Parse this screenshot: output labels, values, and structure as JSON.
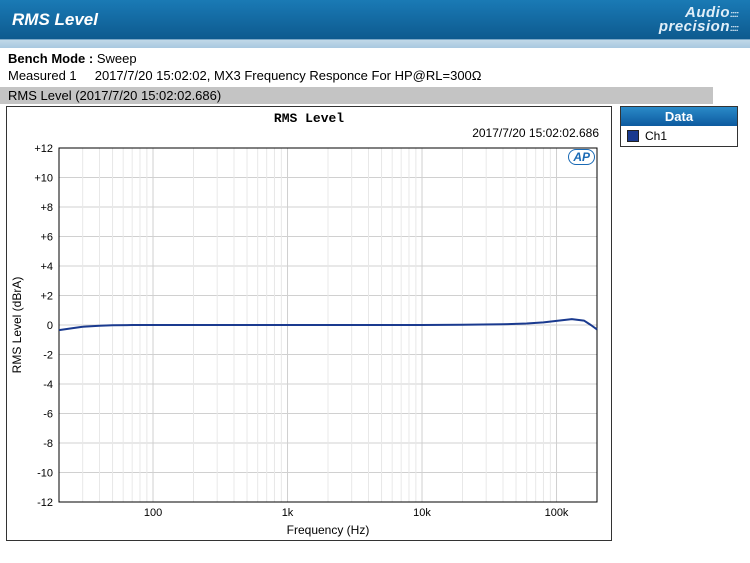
{
  "header": {
    "title": "RMS Level",
    "logo_line1": "Audio",
    "logo_line2": "precision"
  },
  "info": {
    "bench_mode_label": "Bench Mode : ",
    "bench_mode_value": "Sweep",
    "measured_label": "Measured 1",
    "measured_detail": "2017/7/20 15:02:02, MX3 Frequency Responce For HP@RL=300Ω",
    "measurement_bar": "RMS Level (2017/7/20 15:02:02.686)"
  },
  "chart": {
    "type": "line",
    "title": "RMS Level",
    "timestamp": "2017/7/20 15:02:02.686",
    "xlabel": "Frequency (Hz)",
    "ylabel": "RMS Level (dBrA)",
    "xscale": "log",
    "xlim_low": 20,
    "xlim_high": 200000,
    "ylim_low": -12,
    "ylim_high": 12,
    "ytick_step": 2,
    "x_major_ticks": [
      100,
      1000,
      10000,
      100000
    ],
    "x_major_labels": [
      "100",
      "1k",
      "10k",
      "100k"
    ],
    "y_ticks": [
      12,
      10,
      8,
      6,
      4,
      2,
      0,
      -2,
      -4,
      -6,
      -8,
      -10,
      -12
    ],
    "y_tick_labels": [
      "+12",
      "+10",
      "+8",
      "+6",
      "+4",
      "+2",
      "0",
      "-2",
      "-4",
      "-6",
      "-8",
      "-10",
      "-12"
    ],
    "grid_color": "#d0d0d0",
    "grid_minor_color": "#e8e8e8",
    "background_color": "#ffffff",
    "plot_border_color": "#000000",
    "series": [
      {
        "name": "Ch1",
        "color": "#1a3a8f",
        "line_width": 2,
        "data": [
          {
            "x": 20,
            "y": -0.35
          },
          {
            "x": 25,
            "y": -0.22
          },
          {
            "x": 30,
            "y": -0.12
          },
          {
            "x": 40,
            "y": -0.05
          },
          {
            "x": 50,
            "y": -0.02
          },
          {
            "x": 70,
            "y": 0.0
          },
          {
            "x": 100,
            "y": 0.0
          },
          {
            "x": 200,
            "y": 0.0
          },
          {
            "x": 500,
            "y": 0.0
          },
          {
            "x": 1000,
            "y": 0.0
          },
          {
            "x": 2000,
            "y": 0.0
          },
          {
            "x": 5000,
            "y": 0.0
          },
          {
            "x": 10000,
            "y": 0.0
          },
          {
            "x": 20000,
            "y": 0.02
          },
          {
            "x": 40000,
            "y": 0.05
          },
          {
            "x": 60000,
            "y": 0.1
          },
          {
            "x": 80000,
            "y": 0.18
          },
          {
            "x": 100000,
            "y": 0.28
          },
          {
            "x": 130000,
            "y": 0.4
          },
          {
            "x": 160000,
            "y": 0.3
          },
          {
            "x": 180000,
            "y": 0.0
          },
          {
            "x": 200000,
            "y": -0.3
          }
        ]
      }
    ],
    "ap_badge": "AP"
  },
  "legend": {
    "header": "Data",
    "items": [
      {
        "label": "Ch1",
        "color": "#1a3a8f"
      }
    ]
  }
}
